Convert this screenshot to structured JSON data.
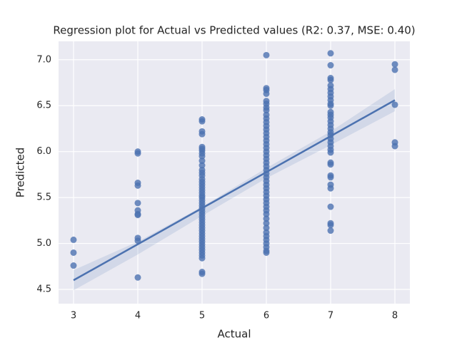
{
  "chart_data": {
    "type": "scatter",
    "title": "Regression plot for Actual vs Predicted values (R2: 0.37, MSE: 0.40)",
    "x_label": "Actual",
    "y_label": "Predicted",
    "color": "#4c72b0",
    "groups": [
      {
        "x": 3,
        "values": [
          5.04,
          4.9,
          4.76
        ]
      },
      {
        "x": 4,
        "values": [
          6.0,
          5.98,
          5.66,
          5.63,
          5.44,
          5.36,
          5.32,
          5.31,
          5.06,
          5.03,
          4.63
        ]
      },
      {
        "x": 5,
        "values": [
          6.35,
          6.33,
          6.22,
          6.19,
          6.05,
          6.03,
          6.01,
          5.98,
          5.95,
          5.9,
          5.85,
          5.8,
          5.77,
          5.74,
          5.7,
          5.67,
          5.64,
          5.61,
          5.58,
          5.55,
          5.52,
          5.5,
          5.47,
          5.44,
          5.41,
          5.38,
          5.35,
          5.32,
          5.29,
          5.26,
          5.23,
          5.2,
          5.17,
          5.14,
          5.11,
          5.08,
          5.05,
          5.02,
          4.99,
          4.96,
          4.93,
          4.9,
          4.87,
          4.84,
          4.69,
          4.67
        ]
      },
      {
        "x": 6,
        "values": [
          7.05,
          6.69,
          6.67,
          6.63,
          6.55,
          6.52,
          6.48,
          6.45,
          6.4,
          6.36,
          6.32,
          6.28,
          6.24,
          6.2,
          6.16,
          6.12,
          6.08,
          6.04,
          6.0,
          5.96,
          5.92,
          5.88,
          5.84,
          5.8,
          5.76,
          5.72,
          5.68,
          5.64,
          5.6,
          5.56,
          5.52,
          5.48,
          5.44,
          5.4,
          5.36,
          5.32,
          5.27,
          5.22,
          5.17,
          5.12,
          5.08,
          5.04,
          5.0,
          4.96,
          4.92,
          4.9
        ]
      },
      {
        "x": 7,
        "values": [
          7.07,
          6.94,
          6.8,
          6.78,
          6.72,
          6.68,
          6.64,
          6.6,
          6.56,
          6.52,
          6.5,
          6.43,
          6.4,
          6.37,
          6.33,
          6.29,
          6.25,
          6.21,
          6.18,
          6.14,
          6.1,
          6.06,
          6.02,
          5.99,
          5.88,
          5.86,
          5.74,
          5.72,
          5.64,
          5.6,
          5.4,
          5.22,
          5.2,
          5.14
        ]
      },
      {
        "x": 8,
        "values": [
          6.95,
          6.89,
          6.51,
          6.1,
          6.06
        ]
      }
    ],
    "fit": {
      "x": [
        3,
        8
      ],
      "values": [
        4.6,
        6.56
      ]
    },
    "band": {
      "x": [
        3,
        4,
        5,
        6,
        7,
        8
      ],
      "lower": [
        4.49,
        4.88,
        5.3,
        5.71,
        6.07,
        6.44
      ],
      "upper": [
        4.71,
        5.02,
        5.4,
        5.82,
        6.22,
        6.68
      ]
    },
    "xlim": [
      2.767,
      8.233
    ],
    "ylim": [
      4.345,
      7.2
    ],
    "xticks": [
      3,
      4,
      5,
      6,
      7,
      8
    ],
    "yticks": [
      4.5,
      {
        "value": 5.0,
        "label": "5.0"
      },
      5.5,
      {
        "value": 6.0,
        "label": "6.0"
      },
      6.5,
      {
        "value": 7.0,
        "label": "7.0"
      }
    ],
    "grid": true
  }
}
